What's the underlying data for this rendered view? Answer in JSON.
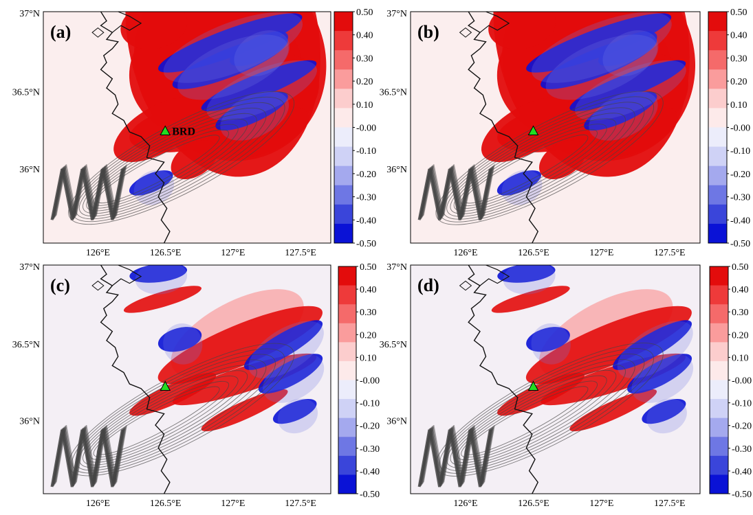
{
  "figure": {
    "lat_ticks": [
      "37°N",
      "36.5°N",
      "36°N"
    ],
    "lon_ticks": [
      "126°E",
      "126.5°E",
      "127°E",
      "127.5°E"
    ],
    "station_label": "BRD",
    "colorbar": {
      "labels": [
        "0.50",
        "0.40",
        "0.30",
        "0.20",
        "0.10",
        "-0.00",
        "-0.10",
        "-0.20",
        "-0.30",
        "-0.40",
        "-0.50"
      ],
      "colors": [
        "#e30c0c",
        "#ee3a3a",
        "#f56a6a",
        "#fa9c9c",
        "#fccdcd",
        "#fdeaea",
        "#ecedfb",
        "#cfd2f6",
        "#a4a9ee",
        "#6e77e4",
        "#3a45da",
        "#0a12d6"
      ]
    },
    "colors": {
      "land_outline": "#111111",
      "contour": "#444444",
      "station_fill": "#22dd22",
      "background": "#fbeeee"
    },
    "panels": [
      {
        "label": "(a)",
        "show_station_label": true
      },
      {
        "label": "(b)",
        "show_station_label": false
      },
      {
        "label": "(c)",
        "show_station_label": false
      },
      {
        "label": "(d)",
        "show_station_label": false
      }
    ]
  }
}
